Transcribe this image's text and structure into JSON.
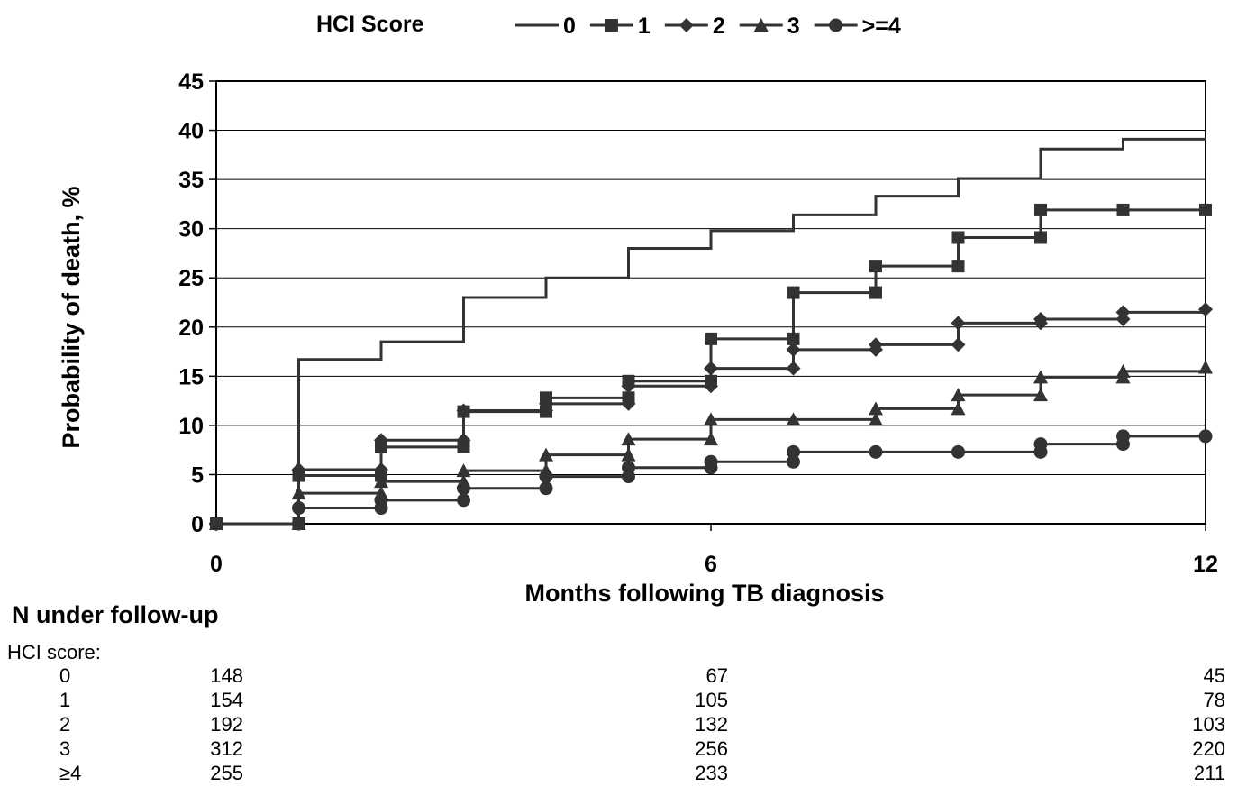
{
  "chart_data": {
    "type": "line",
    "step": true,
    "legend_title": "HCI Score",
    "legend_position": "top",
    "xlabel": "Months following TB diagnosis",
    "ylabel": "Probability of death, %",
    "xlim": [
      0,
      12
    ],
    "ylim": [
      0,
      45
    ],
    "x_ticks": [
      0,
      6,
      12
    ],
    "y_ticks": [
      0,
      5,
      10,
      15,
      20,
      25,
      30,
      35,
      40,
      45
    ],
    "grid": "horizontal",
    "series": [
      {
        "name": "0",
        "marker": "none",
        "x": [
          0,
          1,
          2,
          3,
          4,
          5,
          6,
          7,
          8,
          9,
          10,
          11,
          12
        ],
        "y": [
          0,
          16.7,
          18.5,
          23.0,
          25.0,
          28.0,
          29.8,
          31.4,
          33.3,
          35.1,
          38.1,
          39.1,
          39.1
        ]
      },
      {
        "name": "1",
        "marker": "square",
        "x": [
          0,
          1,
          2,
          3,
          4,
          5,
          6,
          7,
          8,
          9,
          10,
          11,
          12
        ],
        "y": [
          0,
          4.9,
          7.8,
          11.4,
          12.8,
          14.5,
          18.8,
          23.5,
          26.2,
          29.1,
          31.9,
          31.9,
          31.9
        ]
      },
      {
        "name": "2",
        "marker": "diamond",
        "x": [
          0,
          1,
          2,
          3,
          4,
          5,
          6,
          7,
          8,
          9,
          10,
          11,
          12
        ],
        "y": [
          0,
          5.5,
          8.5,
          11.5,
          12.2,
          14.0,
          15.8,
          17.7,
          18.2,
          20.4,
          20.8,
          21.5,
          21.8
        ]
      },
      {
        "name": "3",
        "marker": "triangle",
        "x": [
          0,
          1,
          2,
          3,
          4,
          5,
          6,
          7,
          8,
          9,
          10,
          11,
          12
        ],
        "y": [
          0,
          3.1,
          4.3,
          5.4,
          7.0,
          8.6,
          10.6,
          10.6,
          11.7,
          13.1,
          14.9,
          15.5,
          15.9
        ]
      },
      {
        "name": ">=4",
        "marker": "circle",
        "x": [
          0,
          1,
          2,
          3,
          4,
          5,
          6,
          7,
          8,
          9,
          10,
          11,
          12
        ],
        "y": [
          0,
          1.6,
          2.4,
          3.6,
          4.8,
          5.7,
          6.3,
          7.3,
          7.3,
          7.3,
          8.1,
          8.9,
          8.9
        ]
      }
    ]
  },
  "followup": {
    "title": "N under follow-up",
    "label": "HCI score:",
    "rows": [
      {
        "score": "0",
        "values": [
          "148",
          "67",
          "45"
        ]
      },
      {
        "score": "1",
        "values": [
          "154",
          "105",
          "78"
        ]
      },
      {
        "score": "2",
        "values": [
          "192",
          "132",
          "103"
        ]
      },
      {
        "score": "3",
        "values": [
          "312",
          "256",
          "220"
        ]
      },
      {
        "score": "≥4",
        "values": [
          "255",
          "233",
          "211"
        ]
      }
    ]
  }
}
